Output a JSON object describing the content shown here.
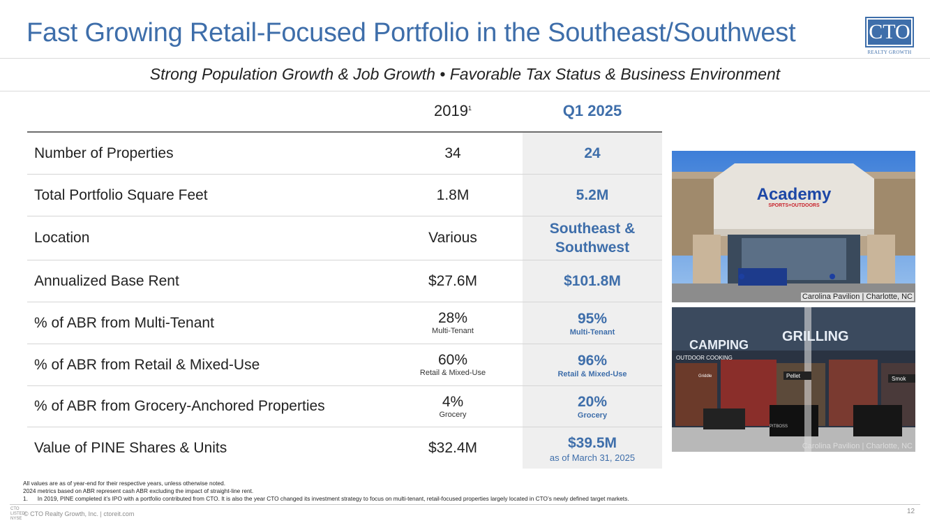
{
  "header": {
    "title": "Fast Growing Retail-Focused Portfolio in the Southeast/Southwest",
    "logo_text": "CTO",
    "logo_sub": "REALTY GROWTH",
    "subtitle": "Strong Population Growth & Job Growth • Favorable Tax Status & Business Environment"
  },
  "table": {
    "col_2019": "2019",
    "col_2019_footnote": "1",
    "col_q1": "Q1 2025",
    "rows": [
      {
        "label": "Number of Properties",
        "v2019": "34",
        "vq1": "24"
      },
      {
        "label": "Total Portfolio Square Feet",
        "v2019": "1.8M",
        "vq1": "5.2M"
      },
      {
        "label": "Location",
        "v2019": "Various",
        "vq1_line1": "Southeast &",
        "vq1_line2": "Southwest"
      },
      {
        "label": "Annualized Base Rent",
        "v2019": "$27.6M",
        "vq1": "$101.8M"
      },
      {
        "label": "% of ABR from Multi-Tenant",
        "v2019": "28%",
        "v2019_sub": "Multi-Tenant",
        "vq1": "95%",
        "vq1_sub": "Multi-Tenant"
      },
      {
        "label": "% of ABR from Retail & Mixed-Use",
        "v2019": "60%",
        "v2019_sub": "Retail & Mixed-Use",
        "vq1": "96%",
        "vq1_sub": "Retail & Mixed-Use"
      },
      {
        "label": "% of ABR from Grocery-Anchored Properties",
        "v2019": "4%",
        "v2019_sub": "Grocery",
        "vq1": "20%",
        "vq1_sub": "Grocery"
      },
      {
        "label": "Value of PINE Shares & Units",
        "v2019": "$32.4M",
        "vq1": "$39.5M",
        "vq1_sub": "as of March 31, 2025"
      }
    ]
  },
  "photos": [
    {
      "caption": "Carolina Pavilion | Charlotte, NC",
      "sign_main": "Academy",
      "sign_sub": "SPORTS+OUTDOORS"
    },
    {
      "caption": "Carolina Pavilion | Charlotte, NC",
      "sign_camping": "CAMPING",
      "sign_grilling": "GRILLING",
      "sign_outdoor": "OUTDOOR COOKING",
      "sign_pellet": "Pellet",
      "sign_smoke": "Smok",
      "sign_griddle": "Griddle",
      "sign_pitboss": "PITBOSS"
    }
  ],
  "notes": {
    "line1": "All values are as of year-end for their respective years, unless otherwise noted.",
    "line2": "2024 metrics based on ABR represent cash ABR excluding the impact of straight-line rent.",
    "line3_num": "1.",
    "line3": "In 2019, PINE completed it’s IPO with a portfolio contributed from CTO.  It is also the year CTO changed its investment strategy to focus on multi-tenant, retail-focused properties largely located in CTO’s newly defined target markets."
  },
  "footer": {
    "copyright": "© CTO Realty Growth, Inc. | ctoreit.com",
    "mini_logo_1": "CTO",
    "mini_logo_2": "LISTED",
    "mini_logo_3": "NYSE",
    "page": "12"
  }
}
